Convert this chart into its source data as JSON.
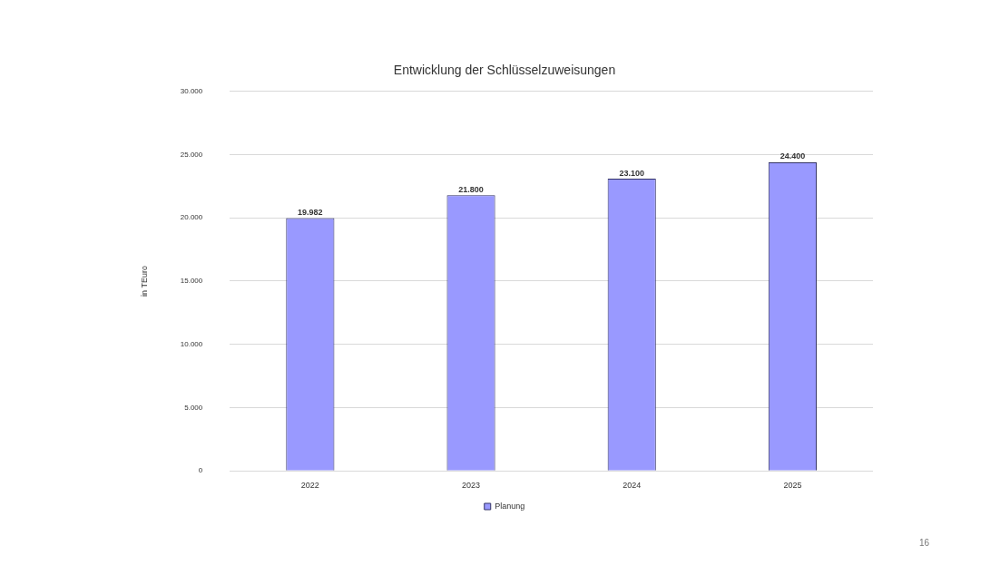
{
  "chart_data": {
    "type": "bar",
    "title": "Entwicklung der Schlüsselzuweisungen",
    "ylabel": "in TEuro",
    "categories": [
      "2022",
      "2023",
      "2024",
      "2025"
    ],
    "series": [
      {
        "name": "Planung",
        "color": "#9999ff",
        "values": [
          19982,
          21800,
          23100,
          24400
        ],
        "value_labels": [
          "19.982",
          "21.800",
          "23.100",
          "24.400"
        ]
      }
    ],
    "ylim": [
      0,
      30000
    ],
    "yticks": [
      0,
      {
        "value": 5000,
        "label": "5.000"
      },
      {
        "value": 10000,
        "label": "10.000"
      },
      {
        "value": 15000,
        "label": "15.000"
      },
      {
        "value": 20000,
        "label": "20.000"
      },
      {
        "value": 25000,
        "label": "25.000"
      },
      {
        "value": 30000,
        "label": "30.000"
      }
    ],
    "grid": "y",
    "legend": "bottom",
    "annotations": [
      "16"
    ]
  }
}
